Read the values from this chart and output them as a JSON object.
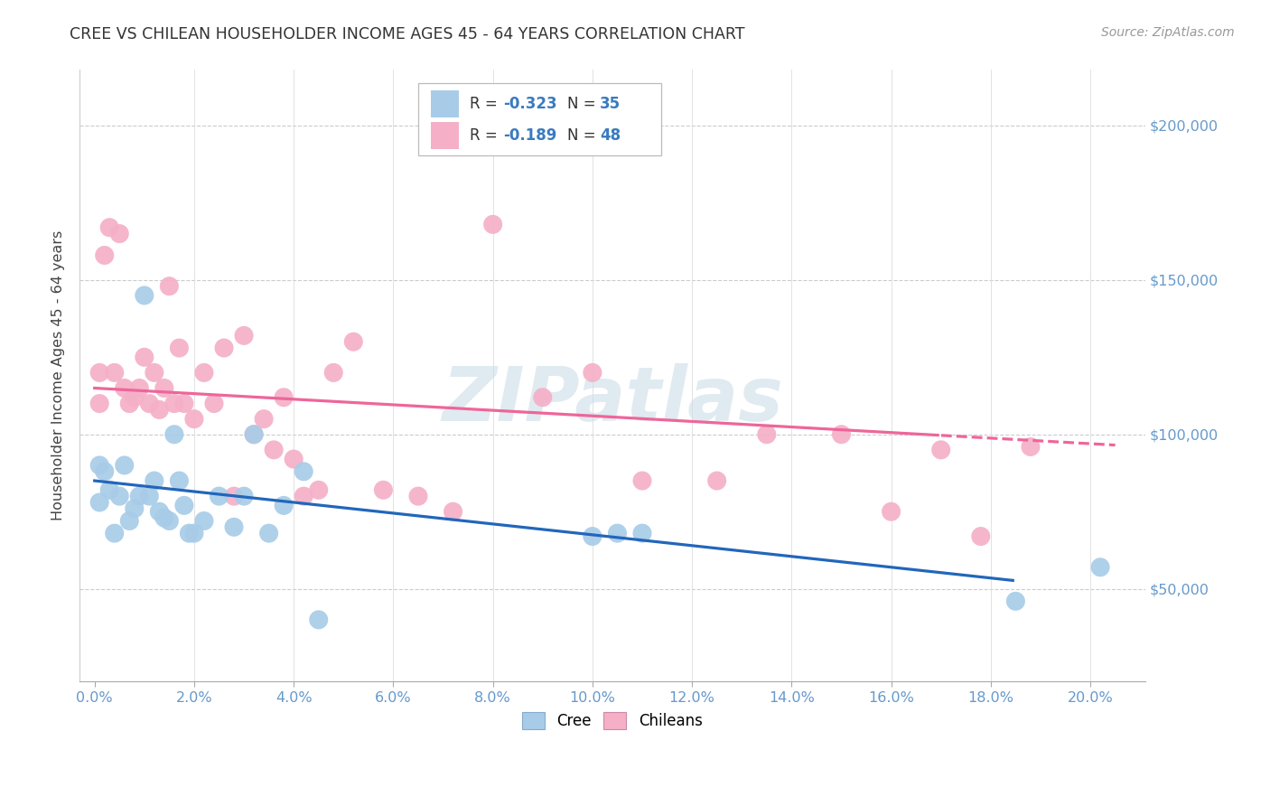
{
  "title": "CREE VS CHILEAN HOUSEHOLDER INCOME AGES 45 - 64 YEARS CORRELATION CHART",
  "source": "Source: ZipAtlas.com",
  "xlabel_ticks": [
    "0.0%",
    "2.0%",
    "4.0%",
    "6.0%",
    "8.0%",
    "10.0%",
    "12.0%",
    "14.0%",
    "16.0%",
    "18.0%",
    "20.0%"
  ],
  "xlabel_vals": [
    0.0,
    0.02,
    0.04,
    0.06,
    0.08,
    0.1,
    0.12,
    0.14,
    0.16,
    0.18,
    0.2
  ],
  "ylabel_ticks": [
    "$50,000",
    "$100,000",
    "$150,000",
    "$200,000"
  ],
  "ylabel_vals": [
    50000,
    100000,
    150000,
    200000
  ],
  "xlim": [
    -0.003,
    0.211
  ],
  "ylim": [
    20000,
    218000
  ],
  "cree_color": "#a8cce8",
  "chilean_color": "#f5b0c8",
  "cree_line_color": "#2266bb",
  "chilean_line_color": "#ee6699",
  "legend_R_cree": "-0.323",
  "legend_N_cree": "35",
  "legend_R_chilean": "-0.189",
  "legend_N_chilean": "48",
  "watermark": "ZIPatlas",
  "cree_scatter_x": [
    0.001,
    0.001,
    0.002,
    0.003,
    0.004,
    0.005,
    0.006,
    0.007,
    0.008,
    0.009,
    0.01,
    0.011,
    0.012,
    0.013,
    0.014,
    0.015,
    0.016,
    0.017,
    0.018,
    0.019,
    0.02,
    0.022,
    0.025,
    0.028,
    0.03,
    0.032,
    0.035,
    0.038,
    0.042,
    0.045,
    0.1,
    0.105,
    0.11,
    0.185,
    0.202
  ],
  "cree_scatter_y": [
    90000,
    78000,
    88000,
    82000,
    68000,
    80000,
    90000,
    72000,
    76000,
    80000,
    145000,
    80000,
    85000,
    75000,
    73000,
    72000,
    100000,
    85000,
    77000,
    68000,
    68000,
    72000,
    80000,
    70000,
    80000,
    100000,
    68000,
    77000,
    88000,
    40000,
    67000,
    68000,
    68000,
    46000,
    57000
  ],
  "chilean_scatter_x": [
    0.001,
    0.001,
    0.002,
    0.003,
    0.004,
    0.005,
    0.006,
    0.007,
    0.008,
    0.009,
    0.01,
    0.011,
    0.012,
    0.013,
    0.014,
    0.015,
    0.016,
    0.017,
    0.018,
    0.02,
    0.022,
    0.024,
    0.026,
    0.028,
    0.03,
    0.032,
    0.034,
    0.036,
    0.038,
    0.04,
    0.042,
    0.045,
    0.048,
    0.052,
    0.058,
    0.065,
    0.072,
    0.08,
    0.09,
    0.1,
    0.11,
    0.125,
    0.135,
    0.15,
    0.16,
    0.17,
    0.178,
    0.188
  ],
  "chilean_scatter_y": [
    120000,
    110000,
    158000,
    167000,
    120000,
    165000,
    115000,
    110000,
    112000,
    115000,
    125000,
    110000,
    120000,
    108000,
    115000,
    148000,
    110000,
    128000,
    110000,
    105000,
    120000,
    110000,
    128000,
    80000,
    132000,
    100000,
    105000,
    95000,
    112000,
    92000,
    80000,
    82000,
    120000,
    130000,
    82000,
    80000,
    75000,
    168000,
    112000,
    120000,
    85000,
    85000,
    100000,
    100000,
    75000,
    95000,
    67000,
    96000
  ]
}
